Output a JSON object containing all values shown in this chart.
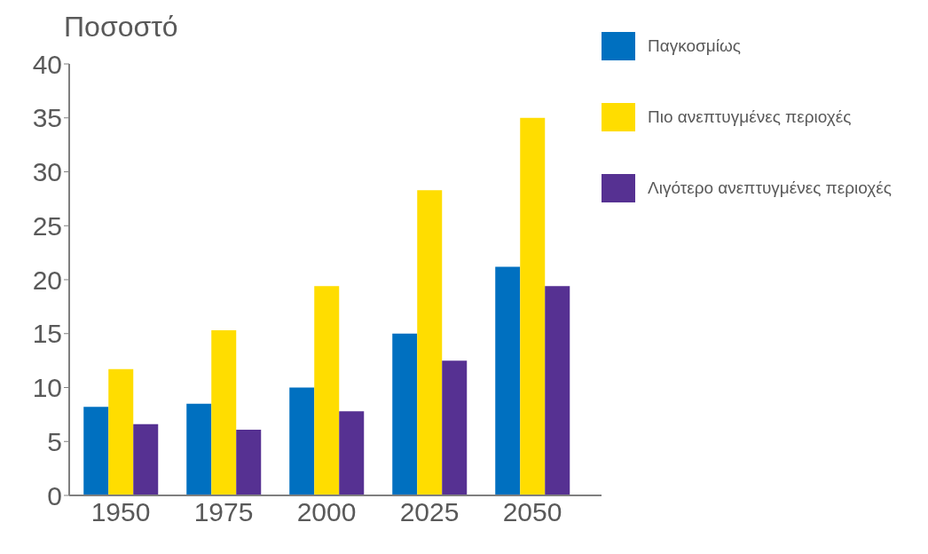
{
  "chart_data": {
    "type": "bar",
    "title": "Ποσοστό",
    "categories": [
      "1950",
      "1975",
      "2000",
      "2025",
      "2050"
    ],
    "series": [
      {
        "name": "Παγκοσμίως",
        "color": "#0070c0",
        "values": [
          8.2,
          8.5,
          10.0,
          15.0,
          21.2
        ]
      },
      {
        "name": "Πιο ανεπτυγμένες περιοχές",
        "color": "#ffdd00",
        "values": [
          11.7,
          15.3,
          19.4,
          28.3,
          35.0
        ]
      },
      {
        "name": "Λιγότερο ανεπτυγμένες περιοχές",
        "color": "#563192",
        "values": [
          6.6,
          6.1,
          7.8,
          12.5,
          19.4
        ]
      }
    ],
    "ylim": [
      0,
      40
    ],
    "yticks": [
      0,
      5,
      10,
      15,
      20,
      25,
      30,
      35,
      40
    ],
    "grid": false,
    "legend": "top right"
  }
}
